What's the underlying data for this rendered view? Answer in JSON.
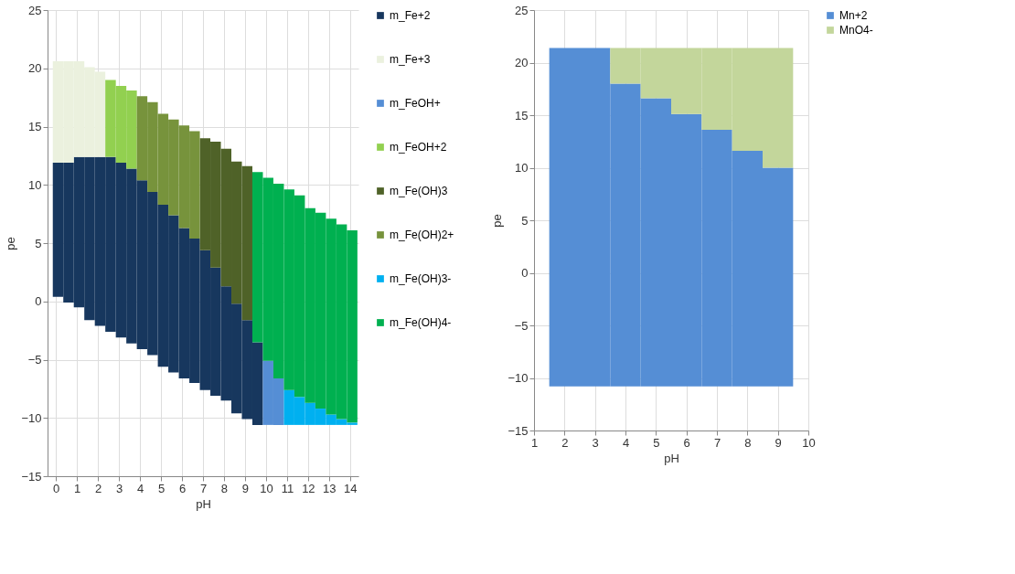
{
  "chart_data": [
    {
      "type": "bar",
      "xlabel": "pH",
      "ylabel": "pe",
      "grid": true,
      "legend": "right",
      "xlim": [
        -0.4,
        14.4
      ],
      "xticks": [
        0,
        1,
        2,
        3,
        4,
        5,
        6,
        7,
        8,
        9,
        10,
        11,
        12,
        13,
        14
      ],
      "ylim": [
        -15,
        25
      ],
      "yticks": [
        -15,
        -10,
        -5,
        0,
        5,
        10,
        15,
        20,
        25
      ],
      "x": [
        0.1,
        0.6,
        1.1,
        1.6,
        2.1,
        2.6,
        3.1,
        3.6,
        4.1,
        4.6,
        5.1,
        5.6,
        6.1,
        6.6,
        7.1,
        7.6,
        8.1,
        8.6,
        9.1,
        9.6,
        10.1,
        10.6,
        11.1,
        11.6,
        12.1,
        12.6,
        13.1,
        13.6,
        14.1
      ],
      "series": [
        {
          "name": "m_Fe+2",
          "color": "#17375e",
          "base": [
            0.4,
            -0.1,
            -0.5,
            -1.6,
            -2.1,
            -2.6,
            -3.1,
            -3.6,
            -4.1,
            -4.6,
            -5.6,
            -6.1,
            -6.6,
            -7.0,
            -7.6,
            -8.1,
            -8.5,
            -9.6,
            -10.1,
            -10.6,
            null,
            null,
            null,
            null,
            null,
            null,
            null,
            null,
            null
          ],
          "values": [
            11.5,
            12.0,
            12.9,
            14.0,
            14.5,
            15.0,
            15.0,
            15.0,
            14.5,
            14.0,
            13.9,
            13.5,
            12.9,
            12.4,
            12.0,
            11.0,
            9.8,
            9.4,
            8.5,
            7.1,
            null,
            null,
            null,
            null,
            null,
            null,
            null,
            null,
            null
          ]
        },
        {
          "name": "m_Fe+3",
          "color": "#ebf1de",
          "base": [
            11.9,
            11.9,
            12.4,
            12.4,
            12.4,
            null,
            null,
            null,
            null,
            null,
            null,
            null,
            null,
            null,
            null,
            null,
            null,
            null,
            null,
            null,
            null,
            null,
            null,
            null,
            null,
            null,
            null,
            null,
            null
          ],
          "values": [
            8.7,
            8.7,
            8.2,
            7.7,
            7.3,
            null,
            null,
            null,
            null,
            null,
            null,
            null,
            null,
            null,
            null,
            null,
            null,
            null,
            null,
            null,
            null,
            null,
            null,
            null,
            null,
            null,
            null,
            null,
            null
          ]
        },
        {
          "name": "m_FeOH+",
          "color": "#558ed5",
          "base": [
            null,
            null,
            null,
            null,
            null,
            null,
            null,
            null,
            null,
            null,
            null,
            null,
            null,
            null,
            null,
            null,
            null,
            null,
            null,
            null,
            -10.6,
            -10.6,
            null,
            null,
            null,
            null,
            null,
            null,
            null
          ],
          "values": [
            null,
            null,
            null,
            null,
            null,
            null,
            null,
            null,
            null,
            null,
            null,
            null,
            null,
            null,
            null,
            null,
            null,
            null,
            null,
            null,
            5.5,
            4.0,
            null,
            null,
            null,
            null,
            null,
            null,
            null
          ]
        },
        {
          "name": "m_FeOH+2",
          "color": "#92d050",
          "base": [
            null,
            null,
            null,
            null,
            null,
            12.4,
            11.9,
            11.4,
            null,
            null,
            null,
            null,
            null,
            null,
            null,
            null,
            null,
            null,
            null,
            null,
            null,
            null,
            null,
            null,
            null,
            null,
            null,
            null,
            null
          ],
          "values": [
            null,
            null,
            null,
            null,
            null,
            6.6,
            6.6,
            6.7,
            null,
            null,
            null,
            null,
            null,
            null,
            null,
            null,
            null,
            null,
            null,
            null,
            null,
            null,
            null,
            null,
            null,
            null,
            null,
            null,
            null
          ]
        },
        {
          "name": "m_Fe(OH)3",
          "color": "#4f6228",
          "base": [
            null,
            null,
            null,
            null,
            null,
            null,
            null,
            null,
            null,
            null,
            null,
            null,
            null,
            null,
            4.4,
            2.9,
            1.3,
            -0.2,
            -1.6,
            null,
            null,
            null,
            null,
            null,
            null,
            null,
            null,
            null,
            null
          ],
          "values": [
            null,
            null,
            null,
            null,
            null,
            null,
            null,
            null,
            null,
            null,
            null,
            null,
            null,
            null,
            9.6,
            10.8,
            11.8,
            12.2,
            13.2,
            null,
            null,
            null,
            null,
            null,
            null,
            null,
            null,
            null,
            null
          ]
        },
        {
          "name": "m_Fe(OH)2+",
          "color": "#77933c",
          "base": [
            null,
            null,
            null,
            null,
            null,
            null,
            null,
            null,
            10.4,
            9.4,
            8.3,
            7.4,
            6.3,
            5.4,
            null,
            null,
            null,
            null,
            null,
            null,
            null,
            null,
            null,
            null,
            null,
            null,
            null,
            null,
            null
          ],
          "values": [
            null,
            null,
            null,
            null,
            null,
            null,
            null,
            null,
            7.2,
            7.7,
            7.8,
            8.2,
            8.8,
            9.2,
            null,
            null,
            null,
            null,
            null,
            null,
            null,
            null,
            null,
            null,
            null,
            null,
            null,
            null,
            null
          ]
        },
        {
          "name": "m_Fe(OH)3-",
          "color": "#00b0f0",
          "base": [
            null,
            null,
            null,
            null,
            null,
            null,
            null,
            null,
            null,
            null,
            null,
            null,
            null,
            null,
            null,
            null,
            null,
            null,
            null,
            null,
            null,
            null,
            -10.6,
            -10.6,
            -10.6,
            -10.6,
            -10.6,
            -10.6,
            -10.6
          ],
          "values": [
            null,
            null,
            null,
            null,
            null,
            null,
            null,
            null,
            null,
            null,
            null,
            null,
            null,
            null,
            null,
            null,
            null,
            null,
            null,
            null,
            null,
            null,
            3.0,
            2.4,
            1.9,
            1.4,
            0.9,
            0.5,
            0.2
          ]
        },
        {
          "name": "m_Fe(OH)4-",
          "color": "#00b050",
          "base": [
            null,
            null,
            null,
            null,
            null,
            null,
            null,
            null,
            null,
            null,
            null,
            null,
            null,
            null,
            null,
            null,
            null,
            null,
            null,
            -3.5,
            -5.1,
            -6.6,
            -7.6,
            -8.2,
            -8.7,
            -9.2,
            -9.7,
            -10.1,
            -10.4
          ],
          "values": [
            null,
            null,
            null,
            null,
            null,
            null,
            null,
            null,
            null,
            null,
            null,
            null,
            null,
            null,
            null,
            null,
            null,
            null,
            null,
            14.6,
            15.7,
            16.7,
            17.2,
            17.3,
            16.7,
            16.8,
            16.8,
            16.7,
            16.5
          ]
        }
      ]
    },
    {
      "type": "bar",
      "xlabel": "pH",
      "ylabel": "pe",
      "grid": true,
      "legend": "right",
      "xlim": [
        1,
        10
      ],
      "xticks": [
        1,
        2,
        3,
        4,
        5,
        6,
        7,
        8,
        9,
        10
      ],
      "ylim": [
        -15,
        25
      ],
      "yticks": [
        -15,
        -10,
        -5,
        0,
        5,
        10,
        15,
        20,
        25
      ],
      "x": [
        2,
        3,
        4,
        5,
        6,
        7,
        8,
        9
      ],
      "series": [
        {
          "name": "Mn+2",
          "color": "#558ed5",
          "base": [
            -10.8,
            -10.8,
            -10.8,
            -10.8,
            -10.8,
            -10.8,
            -10.8,
            -10.8
          ],
          "values": [
            32.2,
            32.2,
            28.8,
            27.4,
            25.9,
            24.4,
            22.4,
            20.8
          ]
        },
        {
          "name": "MnO4-",
          "color": "#c3d69b",
          "base": [
            null,
            null,
            18.0,
            16.6,
            15.1,
            13.6,
            11.6,
            10.0
          ],
          "values": [
            null,
            null,
            3.4,
            4.8,
            6.3,
            7.8,
            9.8,
            11.4
          ]
        }
      ]
    }
  ]
}
